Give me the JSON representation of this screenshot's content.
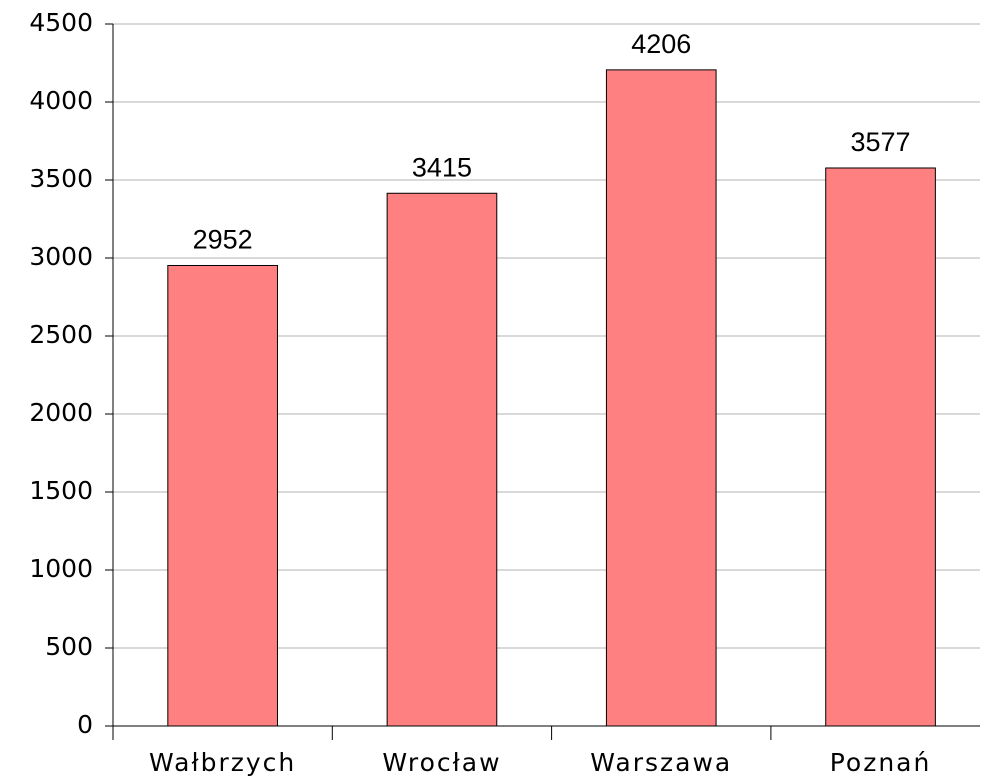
{
  "chart_data": {
    "type": "bar",
    "categories": [
      "Wałbrzych",
      "Wrocław",
      "Warszawa",
      "Poznań"
    ],
    "values": [
      2952,
      3415,
      4206,
      3577
    ],
    "color": "#ff8080",
    "ylim": [
      0,
      4500
    ],
    "yticks": [
      0,
      500,
      1000,
      1500,
      2000,
      2500,
      3000,
      3500,
      4000,
      4500
    ],
    "grid": true
  }
}
